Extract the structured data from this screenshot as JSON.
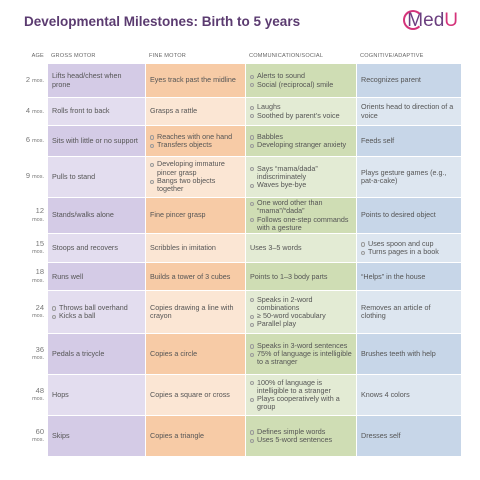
{
  "header": {
    "title": "Developmental Milestones: Birth to 5 years",
    "logo": {
      "main": "Med",
      "accent": "U"
    }
  },
  "table": {
    "columns": [
      "AGE",
      "GROSS MOTOR",
      "FINE MOTOR",
      "COMMUNICATION/SOCIAL",
      "COGNITIVE/ADAPTIVE"
    ],
    "rows": [
      {
        "age": "2",
        "unit": "mos.",
        "cells": [
          "Lifts head/chest when prone",
          "Eyes track past the midline",
          [
            "Alerts to sound",
            "Social (reciprocal) smile"
          ],
          "Recognizes parent"
        ]
      },
      {
        "age": "4",
        "unit": "mos.",
        "cells": [
          "Rolls front to back",
          "Grasps a rattle",
          [
            "Laughs",
            "Soothed by parent’s voice"
          ],
          "Orients head to direction of a voice"
        ]
      },
      {
        "age": "6",
        "unit": "mos.",
        "cells": [
          "Sits with little or no support",
          [
            "Reaches with one hand",
            "Transfers objects"
          ],
          [
            "Babbles",
            "Developing stranger anxiety"
          ],
          "Feeds self"
        ]
      },
      {
        "age": "9",
        "unit": "mos.",
        "cells": [
          "Pulls to stand",
          [
            "Developing immature pincer grasp",
            "Bangs two objects together"
          ],
          [
            "Says “mama/dada” indiscriminately",
            "Waves bye-bye"
          ],
          "Plays gesture games (e.g., pat-a-cake)"
        ]
      },
      {
        "age": "12",
        "unit": "mos.",
        "cells": [
          "Stands/walks alone",
          "Fine pincer grasp",
          [
            "One word other than “mama”/“dada”",
            "Follows one-step commands with a gesture"
          ],
          "Points to desired object"
        ]
      },
      {
        "age": "15",
        "unit": "mos.",
        "cells": [
          "Stoops and recovers",
          "Scribbles in imitation",
          "Uses 3–5 words",
          [
            "Uses spoon and cup",
            "Turns pages in a book"
          ]
        ]
      },
      {
        "age": "18",
        "unit": "mos.",
        "cells": [
          "Runs well",
          "Builds a tower of 3 cubes",
          "Points to 1–3 body parts",
          "“Helps” in the house"
        ]
      },
      {
        "age": "24",
        "unit": "mos.",
        "cells": [
          [
            "Throws ball overhand",
            "Kicks a ball"
          ],
          "Copies drawing a line with crayon",
          [
            "Speaks in 2-word combinations",
            "≥ 50-word vocabulary",
            "Parallel play"
          ],
          "Removes an article of clothing"
        ]
      },
      {
        "age": "36",
        "unit": "mos.",
        "cells": [
          "Pedals a tricycle",
          "Copies a circle",
          [
            "Speaks in 3-word sentences",
            "75% of language is intelligible to a stranger"
          ],
          "Brushes teeth with help"
        ]
      },
      {
        "age": "48",
        "unit": "mos.",
        "cells": [
          "Hops",
          "Copies a square or cross",
          [
            "100% of language is intelligible to a stranger",
            "Plays cooperatively with a group"
          ],
          "Knows 4 colors"
        ]
      },
      {
        "age": "60",
        "unit": "mos.",
        "cells": [
          "Skips",
          "Copies a triangle",
          [
            "Defines simple words",
            "Uses 5-word sentences"
          ],
          "Dresses self"
        ]
      }
    ]
  }
}
